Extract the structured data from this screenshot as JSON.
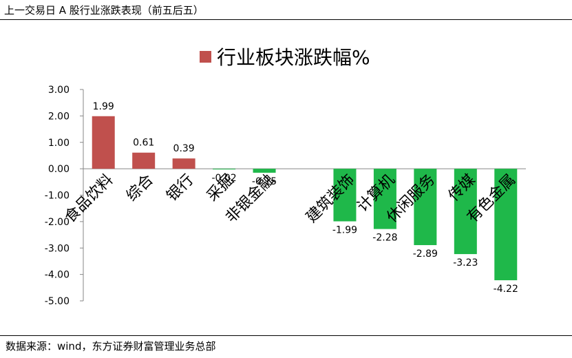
{
  "header": {
    "title": "上一交易日 A 股行业涨跌表现（前五后五）"
  },
  "footer": {
    "source": "数据来源：wind，东方证券财富管理业务总部"
  },
  "colors": {
    "up": "#c0504d",
    "down": "#1fb84a",
    "axis": "#868686",
    "text": "#000000"
  },
  "chart_data": {
    "type": "bar",
    "title": "行业板块涨跌幅%",
    "legend": {
      "position": "top",
      "entries": [
        {
          "name": "行业板块涨跌幅%"
        }
      ]
    },
    "categories": [
      "食品饮料",
      "综合",
      "银行",
      "采掘",
      "非银金融",
      "",
      "建筑装饰",
      "计算机",
      "休闲服务",
      "传媒",
      "有色金属"
    ],
    "values": [
      1.99,
      0.61,
      0.39,
      -0.02,
      -0.15,
      null,
      -1.99,
      -2.28,
      -2.89,
      -3.23,
      -4.22
    ],
    "data_labels": [
      "1.99",
      "0.61",
      "0.39",
      "-0.02",
      "-0.15",
      "",
      "-1.99",
      "-2.28",
      "-2.89",
      "-3.23",
      "-4.22"
    ],
    "yticks": [
      "3.00",
      "2.00",
      "1.00",
      "0.00",
      "-1.00",
      "-2.00",
      "-3.00",
      "-4.00",
      "-5.00"
    ],
    "ylim": [
      -5,
      3
    ],
    "grid": false,
    "xlabel": "",
    "ylabel": ""
  }
}
